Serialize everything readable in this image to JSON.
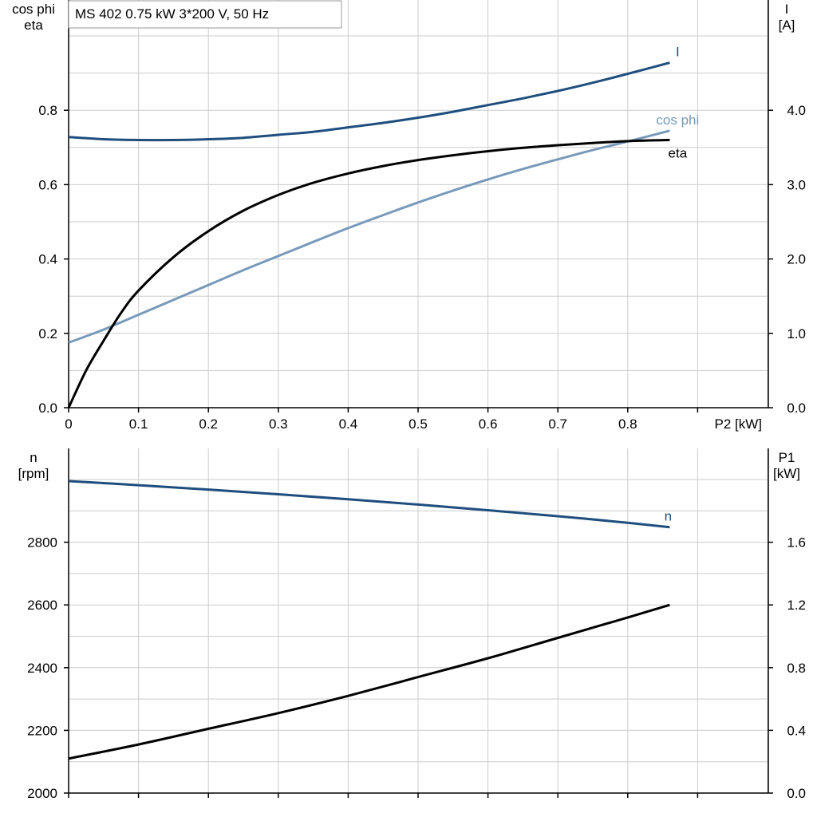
{
  "title": "MS 402   0.75 kW   3*200 V, 50 Hz",
  "colors": {
    "I": "#1f4e7e",
    "cos_phi": "#7799bb",
    "eta": "#000000",
    "n": "#1f4e7e",
    "P1": "#000000",
    "grid": "#cccccc"
  },
  "chart_data": [
    {
      "type": "line",
      "panel": "top",
      "x_label": "P2 [kW]",
      "x_ticks": [
        "0",
        "0.1",
        "0.2",
        "0.3",
        "0.4",
        "0.5",
        "0.6",
        "0.7",
        "0.8"
      ],
      "xlim": [
        0,
        1.0
      ],
      "left_axis_label": [
        "cos phi",
        "eta"
      ],
      "left_ticks": [
        "0.0",
        "0.2",
        "0.4",
        "0.6",
        "0.8"
      ],
      "left_ylim": [
        0,
        1.1
      ],
      "right_axis_label": [
        "I",
        "[A]"
      ],
      "right_ticks": [
        "0.0",
        "1.0",
        "2.0",
        "3.0",
        "4.0"
      ],
      "right_ylim": [
        0,
        5.5
      ],
      "grid": true,
      "series": [
        {
          "name": "I",
          "axis": "right",
          "color_key": "I",
          "x": [
            0.0,
            0.05,
            0.1,
            0.15,
            0.2,
            0.25,
            0.3,
            0.35,
            0.4,
            0.45,
            0.5,
            0.55,
            0.6,
            0.65,
            0.7,
            0.75,
            0.8,
            0.86
          ],
          "y": [
            3.64,
            3.61,
            3.6,
            3.6,
            3.61,
            3.63,
            3.67,
            3.71,
            3.77,
            3.83,
            3.9,
            3.98,
            4.07,
            4.16,
            4.26,
            4.37,
            4.49,
            4.64
          ]
        },
        {
          "name": "cos phi",
          "axis": "left",
          "color_key": "cos_phi",
          "x": [
            0.0,
            0.05,
            0.1,
            0.15,
            0.2,
            0.25,
            0.3,
            0.35,
            0.4,
            0.45,
            0.5,
            0.55,
            0.6,
            0.65,
            0.7,
            0.75,
            0.8,
            0.86
          ],
          "y": [
            0.175,
            0.21,
            0.25,
            0.29,
            0.33,
            0.37,
            0.408,
            0.446,
            0.483,
            0.518,
            0.552,
            0.584,
            0.614,
            0.642,
            0.668,
            0.693,
            0.716,
            0.745
          ]
        },
        {
          "name": "eta",
          "axis": "left",
          "color_key": "eta",
          "x": [
            0.0,
            0.025,
            0.05,
            0.075,
            0.1,
            0.15,
            0.2,
            0.25,
            0.3,
            0.35,
            0.4,
            0.45,
            0.5,
            0.55,
            0.6,
            0.65,
            0.7,
            0.75,
            0.8,
            0.86
          ],
          "y": [
            0.0,
            0.1,
            0.18,
            0.255,
            0.315,
            0.405,
            0.475,
            0.53,
            0.572,
            0.605,
            0.63,
            0.65,
            0.666,
            0.679,
            0.69,
            0.699,
            0.706,
            0.712,
            0.717,
            0.72
          ]
        }
      ]
    },
    {
      "type": "line",
      "panel": "bottom",
      "xlim": [
        0,
        1.0
      ],
      "left_axis_label": [
        "n",
        "[rpm]"
      ],
      "left_ticks": [
        "2000",
        "2200",
        "2400",
        "2600",
        "2800"
      ],
      "left_ylim": [
        2000,
        3100
      ],
      "right_axis_label": [
        "P1",
        "[kW]"
      ],
      "right_ticks": [
        "0.0",
        "0.4",
        "0.8",
        "1.2",
        "1.6"
      ],
      "right_ylim": [
        0.0,
        2.2
      ],
      "grid": true,
      "series": [
        {
          "name": "n",
          "axis": "left",
          "color_key": "n",
          "x": [
            0.0,
            0.1,
            0.2,
            0.3,
            0.4,
            0.5,
            0.6,
            0.7,
            0.8,
            0.86
          ],
          "y": [
            2995,
            2982,
            2968,
            2953,
            2937,
            2920,
            2902,
            2883,
            2862,
            2848
          ]
        },
        {
          "name": "",
          "axis": "right",
          "color_key": "P1",
          "x": [
            0.0,
            0.1,
            0.2,
            0.3,
            0.4,
            0.5,
            0.6,
            0.7,
            0.8,
            0.86
          ],
          "y": [
            0.22,
            0.31,
            0.41,
            0.51,
            0.62,
            0.74,
            0.86,
            0.99,
            1.12,
            1.2
          ]
        }
      ]
    }
  ]
}
